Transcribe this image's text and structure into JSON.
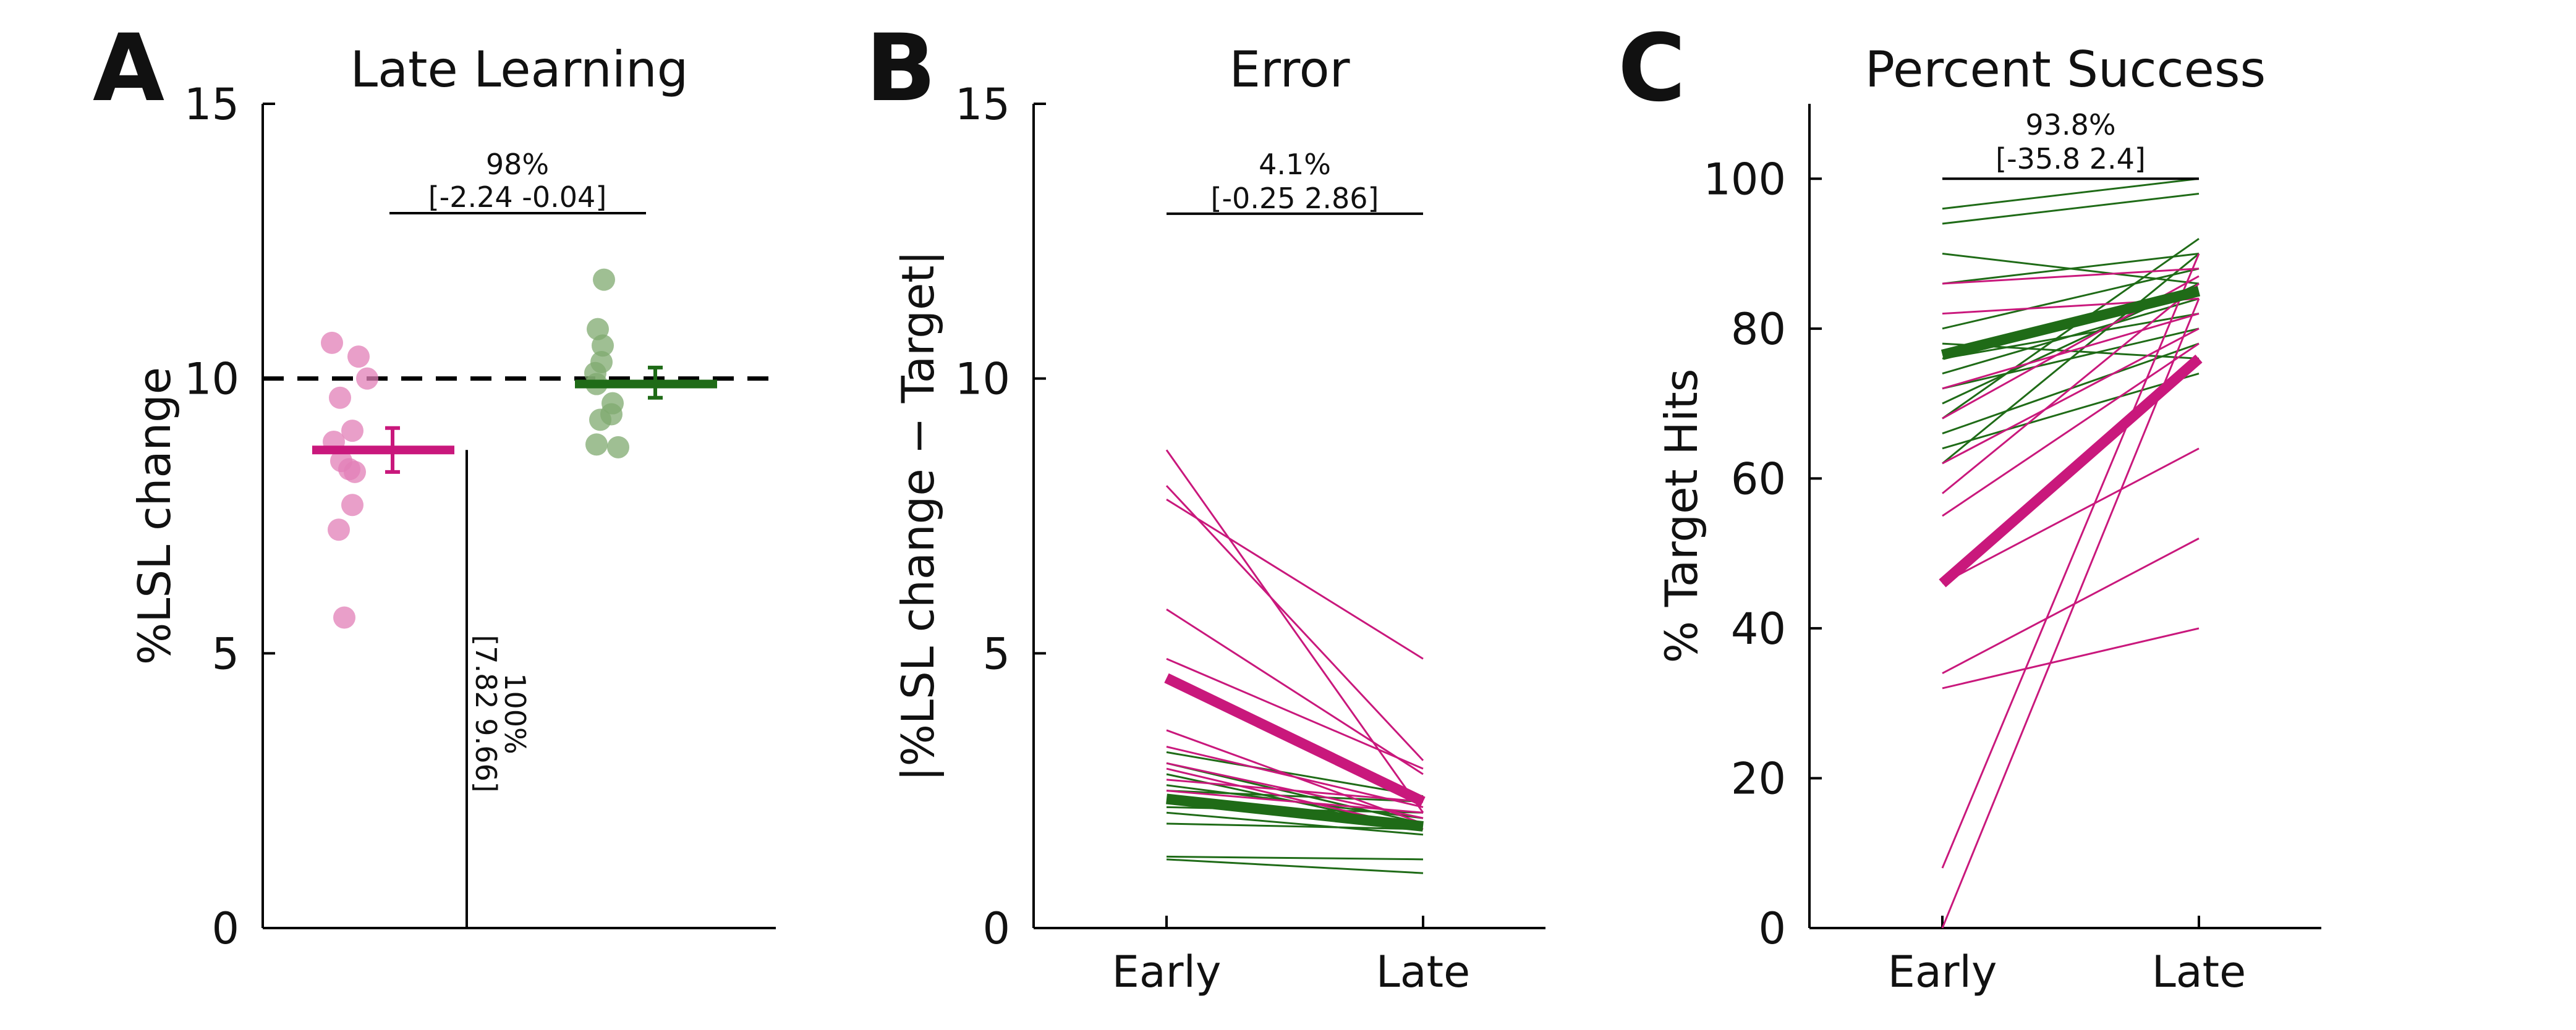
{
  "colors": {
    "magenta": "#c9187c",
    "magenta_light": "#e27fb7",
    "green": "#1f6b17",
    "green_light": "#7fa96f",
    "axis": "#000000"
  },
  "chart_data": [
    {
      "panel": "A",
      "type": "scatter",
      "title": "Late Learning",
      "xlabel": "",
      "ylabel": "%LSL change",
      "ylim": [
        0,
        15
      ],
      "yticks": [
        "0",
        "5",
        "10",
        "15"
      ],
      "reference_line": 10,
      "groups": [
        {
          "color": "magenta",
          "points": [
            10.65,
            10.4,
            10.0,
            9.65,
            9.05,
            8.85,
            8.5,
            8.35,
            8.3,
            7.7,
            7.25,
            5.65
          ],
          "mean": 8.7,
          "ci": [
            8.3,
            9.1
          ]
        },
        {
          "color": "green",
          "points": [
            11.8,
            10.9,
            10.6,
            10.3,
            10.1,
            9.9,
            9.55,
            9.35,
            9.25,
            8.8,
            8.75
          ],
          "mean": 9.9,
          "ci": [
            9.65,
            10.2
          ]
        }
      ],
      "annotations": [
        {
          "pct": "98%",
          "ci": "[-2.24 -0.04]"
        },
        {
          "pct": "100%",
          "ci": "[7.82 9.66]"
        }
      ]
    },
    {
      "panel": "B",
      "type": "line",
      "title": "Error",
      "xlabel": "",
      "ylabel": "|%LSL change − Target|",
      "categories": [
        "Early",
        "Late"
      ],
      "ylim": [
        0,
        15
      ],
      "yticks": [
        "0",
        "5",
        "10",
        "15"
      ],
      "individual": {
        "magenta": [
          [
            8.7,
            2.1
          ],
          [
            8.05,
            3.05
          ],
          [
            7.8,
            4.9
          ],
          [
            5.8,
            2.8
          ],
          [
            4.9,
            2.9
          ],
          [
            3.6,
            1.9
          ],
          [
            3.3,
            2.2
          ],
          [
            3.0,
            2.0
          ],
          [
            2.9,
            1.8
          ],
          [
            2.7,
            2.3
          ],
          [
            2.5,
            2.1
          ],
          [
            2.3,
            1.9
          ]
        ],
        "green": [
          [
            3.2,
            2.4
          ],
          [
            3.0,
            1.9
          ],
          [
            2.8,
            1.8
          ],
          [
            2.6,
            2.0
          ],
          [
            2.5,
            2.3
          ],
          [
            2.2,
            2.1
          ],
          [
            2.1,
            1.7
          ],
          [
            1.9,
            1.8
          ],
          [
            1.3,
            1.25
          ],
          [
            1.25,
            1.0
          ]
        ]
      },
      "mean": {
        "magenta": [
          4.55,
          2.3
        ],
        "green": [
          2.35,
          1.85
        ]
      },
      "annotations": [
        {
          "pct": "4.1%",
          "ci": "[-0.25 2.86]"
        }
      ]
    },
    {
      "panel": "C",
      "type": "line",
      "title": "Percent Success",
      "xlabel": "",
      "ylabel": "% Target Hits",
      "categories": [
        "Early",
        "Late"
      ],
      "ylim": [
        0,
        110
      ],
      "yticks": [
        "0",
        "20",
        "40",
        "60",
        "80",
        "100"
      ],
      "individual": {
        "magenta": [
          [
            0,
            84
          ],
          [
            8,
            90
          ],
          [
            32,
            40
          ],
          [
            34,
            52
          ],
          [
            46,
            64
          ],
          [
            55,
            78
          ],
          [
            58,
            86
          ],
          [
            62,
            80
          ],
          [
            68,
            87
          ],
          [
            72,
            82
          ],
          [
            82,
            84
          ],
          [
            86,
            88
          ]
        ],
        "green": [
          [
            96,
            100
          ],
          [
            94,
            98
          ],
          [
            90,
            86
          ],
          [
            86,
            90
          ],
          [
            80,
            88
          ],
          [
            78,
            76
          ],
          [
            76,
            82
          ],
          [
            74,
            84
          ],
          [
            72,
            80
          ],
          [
            70,
            86
          ],
          [
            68,
            92
          ],
          [
            66,
            78
          ],
          [
            64,
            74
          ],
          [
            62,
            90
          ]
        ]
      },
      "mean": {
        "magenta": [
          46,
          76
        ],
        "green": [
          76.5,
          85
        ]
      },
      "annotations": [
        {
          "pct": "93.8%",
          "ci": "[-35.8 2.4]"
        }
      ]
    }
  ]
}
